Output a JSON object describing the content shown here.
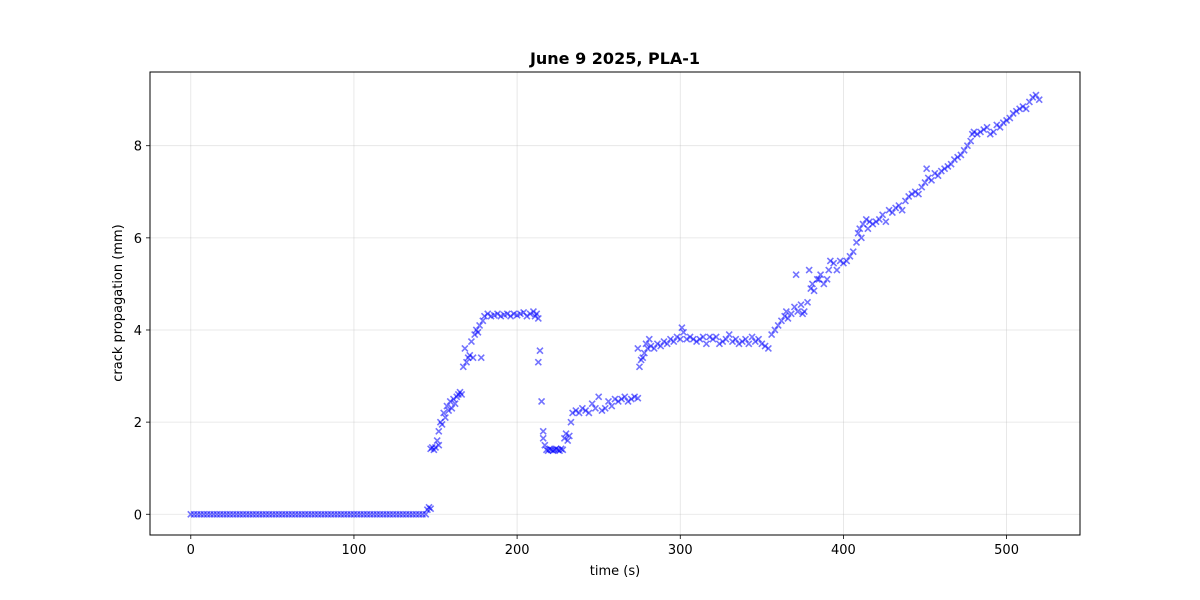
{
  "chart_data": {
    "type": "scatter",
    "title": "June 9 2025, PLA-1",
    "xlabel": "time (s)",
    "ylabel": "crack propagation (mm)",
    "xlim": [
      -25,
      545
    ],
    "ylim": [
      -0.45,
      9.6
    ],
    "xticks": [
      0,
      100,
      200,
      300,
      400,
      500
    ],
    "yticks": [
      0,
      2,
      4,
      6,
      8
    ],
    "grid": true,
    "marker": "x",
    "color": "#0000ff",
    "series": [
      {
        "name": "crack propagation",
        "points": [
          [
            0,
            0
          ],
          [
            2,
            0
          ],
          [
            4,
            0
          ],
          [
            6,
            0
          ],
          [
            8,
            0
          ],
          [
            10,
            0
          ],
          [
            12,
            0
          ],
          [
            14,
            0
          ],
          [
            16,
            0
          ],
          [
            18,
            0
          ],
          [
            20,
            0
          ],
          [
            22,
            0
          ],
          [
            24,
            0
          ],
          [
            26,
            0
          ],
          [
            28,
            0
          ],
          [
            30,
            0
          ],
          [
            32,
            0
          ],
          [
            34,
            0
          ],
          [
            36,
            0
          ],
          [
            38,
            0
          ],
          [
            40,
            0
          ],
          [
            42,
            0
          ],
          [
            44,
            0
          ],
          [
            46,
            0
          ],
          [
            48,
            0
          ],
          [
            50,
            0
          ],
          [
            52,
            0
          ],
          [
            54,
            0
          ],
          [
            56,
            0
          ],
          [
            58,
            0
          ],
          [
            60,
            0
          ],
          [
            62,
            0
          ],
          [
            64,
            0
          ],
          [
            66,
            0
          ],
          [
            68,
            0
          ],
          [
            70,
            0
          ],
          [
            72,
            0
          ],
          [
            74,
            0
          ],
          [
            76,
            0
          ],
          [
            78,
            0
          ],
          [
            80,
            0
          ],
          [
            82,
            0
          ],
          [
            84,
            0
          ],
          [
            86,
            0
          ],
          [
            88,
            0
          ],
          [
            90,
            0
          ],
          [
            92,
            0
          ],
          [
            94,
            0
          ],
          [
            96,
            0
          ],
          [
            98,
            0
          ],
          [
            100,
            0
          ],
          [
            102,
            0
          ],
          [
            104,
            0
          ],
          [
            106,
            0
          ],
          [
            108,
            0
          ],
          [
            110,
            0
          ],
          [
            112,
            0
          ],
          [
            114,
            0
          ],
          [
            116,
            0
          ],
          [
            118,
            0
          ],
          [
            120,
            0
          ],
          [
            122,
            0
          ],
          [
            124,
            0
          ],
          [
            126,
            0
          ],
          [
            128,
            0
          ],
          [
            130,
            0
          ],
          [
            132,
            0
          ],
          [
            134,
            0
          ],
          [
            136,
            0
          ],
          [
            138,
            0
          ],
          [
            140,
            0
          ],
          [
            142,
            0
          ],
          [
            144,
            0
          ],
          [
            145,
            0.1
          ],
          [
            146,
            0.15
          ],
          [
            147,
            0.12
          ],
          [
            147,
            1.42
          ],
          [
            148,
            1.45
          ],
          [
            149,
            1.4
          ],
          [
            150,
            1.45
          ],
          [
            151,
            1.6
          ],
          [
            152,
            1.5
          ],
          [
            152,
            1.8
          ],
          [
            153,
            2.0
          ],
          [
            154,
            1.95
          ],
          [
            155,
            2.2
          ],
          [
            156,
            2.1
          ],
          [
            157,
            2.35
          ],
          [
            158,
            2.25
          ],
          [
            159,
            2.45
          ],
          [
            160,
            2.3
          ],
          [
            161,
            2.5
          ],
          [
            162,
            2.4
          ],
          [
            163,
            2.55
          ],
          [
            164,
            2.6
          ],
          [
            165,
            2.65
          ],
          [
            166,
            2.6
          ],
          [
            167,
            3.2
          ],
          [
            168,
            3.6
          ],
          [
            169,
            3.3
          ],
          [
            170,
            3.4
          ],
          [
            171,
            3.45
          ],
          [
            172,
            3.75
          ],
          [
            173,
            3.4
          ],
          [
            174,
            3.9
          ],
          [
            175,
            4.0
          ],
          [
            176,
            3.95
          ],
          [
            177,
            4.1
          ],
          [
            178,
            3.4
          ],
          [
            179,
            4.2
          ],
          [
            180,
            4.3
          ],
          [
            182,
            4.35
          ],
          [
            184,
            4.3
          ],
          [
            186,
            4.32
          ],
          [
            188,
            4.35
          ],
          [
            190,
            4.3
          ],
          [
            192,
            4.33
          ],
          [
            194,
            4.35
          ],
          [
            196,
            4.3
          ],
          [
            198,
            4.35
          ],
          [
            200,
            4.32
          ],
          [
            202,
            4.35
          ],
          [
            204,
            4.38
          ],
          [
            206,
            4.3
          ],
          [
            208,
            4.35
          ],
          [
            210,
            4.4
          ],
          [
            211,
            4.3
          ],
          [
            212,
            4.35
          ],
          [
            213,
            4.25
          ],
          [
            213,
            3.3
          ],
          [
            214,
            3.55
          ],
          [
            215,
            2.45
          ],
          [
            216,
            1.8
          ],
          [
            216,
            1.65
          ],
          [
            217,
            1.5
          ],
          [
            218,
            1.4
          ],
          [
            219,
            1.38
          ],
          [
            220,
            1.42
          ],
          [
            221,
            1.4
          ],
          [
            222,
            1.38
          ],
          [
            223,
            1.4
          ],
          [
            224,
            1.42
          ],
          [
            225,
            1.4
          ],
          [
            226,
            1.38
          ],
          [
            227,
            1.42
          ],
          [
            228,
            1.4
          ],
          [
            229,
            1.65
          ],
          [
            230,
            1.75
          ],
          [
            231,
            1.6
          ],
          [
            232,
            1.7
          ],
          [
            233,
            2.0
          ],
          [
            234,
            2.2
          ],
          [
            236,
            2.25
          ],
          [
            238,
            2.2
          ],
          [
            240,
            2.3
          ],
          [
            242,
            2.25
          ],
          [
            244,
            2.2
          ],
          [
            246,
            2.4
          ],
          [
            248,
            2.3
          ],
          [
            250,
            2.55
          ],
          [
            252,
            2.25
          ],
          [
            254,
            2.3
          ],
          [
            256,
            2.45
          ],
          [
            258,
            2.35
          ],
          [
            260,
            2.5
          ],
          [
            262,
            2.45
          ],
          [
            264,
            2.5
          ],
          [
            266,
            2.55
          ],
          [
            268,
            2.45
          ],
          [
            270,
            2.5
          ],
          [
            272,
            2.55
          ],
          [
            274,
            2.52
          ],
          [
            274,
            3.6
          ],
          [
            275,
            3.2
          ],
          [
            276,
            3.35
          ],
          [
            277,
            3.4
          ],
          [
            278,
            3.5
          ],
          [
            279,
            3.7
          ],
          [
            280,
            3.6
          ],
          [
            281,
            3.8
          ],
          [
            282,
            3.65
          ],
          [
            284,
            3.6
          ],
          [
            286,
            3.7
          ],
          [
            288,
            3.65
          ],
          [
            290,
            3.75
          ],
          [
            292,
            3.7
          ],
          [
            294,
            3.8
          ],
          [
            296,
            3.75
          ],
          [
            298,
            3.85
          ],
          [
            300,
            3.8
          ],
          [
            301,
            4.05
          ],
          [
            302,
            3.95
          ],
          [
            304,
            3.8
          ],
          [
            306,
            3.85
          ],
          [
            308,
            3.8
          ],
          [
            310,
            3.75
          ],
          [
            312,
            3.8
          ],
          [
            314,
            3.85
          ],
          [
            316,
            3.7
          ],
          [
            318,
            3.85
          ],
          [
            320,
            3.8
          ],
          [
            322,
            3.85
          ],
          [
            324,
            3.7
          ],
          [
            326,
            3.75
          ],
          [
            328,
            3.8
          ],
          [
            330,
            3.9
          ],
          [
            332,
            3.75
          ],
          [
            334,
            3.8
          ],
          [
            336,
            3.7
          ],
          [
            338,
            3.75
          ],
          [
            340,
            3.8
          ],
          [
            342,
            3.7
          ],
          [
            344,
            3.85
          ],
          [
            346,
            3.75
          ],
          [
            348,
            3.8
          ],
          [
            350,
            3.7
          ],
          [
            352,
            3.65
          ],
          [
            354,
            3.6
          ],
          [
            356,
            3.9
          ],
          [
            358,
            4.0
          ],
          [
            360,
            4.1
          ],
          [
            362,
            4.2
          ],
          [
            364,
            4.3
          ],
          [
            365,
            4.4
          ],
          [
            366,
            4.25
          ],
          [
            368,
            4.35
          ],
          [
            370,
            4.5
          ],
          [
            371,
            5.2
          ],
          [
            372,
            4.4
          ],
          [
            374,
            4.55
          ],
          [
            375,
            4.35
          ],
          [
            376,
            4.4
          ],
          [
            378,
            4.6
          ],
          [
            379,
            5.3
          ],
          [
            380,
            4.9
          ],
          [
            381,
            5.0
          ],
          [
            382,
            4.85
          ],
          [
            384,
            5.1
          ],
          [
            385,
            5.1
          ],
          [
            386,
            5.2
          ],
          [
            388,
            5.0
          ],
          [
            390,
            5.1
          ],
          [
            391,
            5.3
          ],
          [
            392,
            5.5
          ],
          [
            394,
            5.45
          ],
          [
            396,
            5.3
          ],
          [
            398,
            5.5
          ],
          [
            400,
            5.45
          ],
          [
            402,
            5.5
          ],
          [
            404,
            5.6
          ],
          [
            406,
            5.7
          ],
          [
            408,
            5.9
          ],
          [
            409,
            6.1
          ],
          [
            410,
            6.2
          ],
          [
            411,
            6.0
          ],
          [
            412,
            6.3
          ],
          [
            414,
            6.4
          ],
          [
            415,
            6.2
          ],
          [
            416,
            6.35
          ],
          [
            418,
            6.3
          ],
          [
            420,
            6.35
          ],
          [
            422,
            6.4
          ],
          [
            424,
            6.5
          ],
          [
            426,
            6.35
          ],
          [
            428,
            6.6
          ],
          [
            430,
            6.55
          ],
          [
            432,
            6.65
          ],
          [
            434,
            6.7
          ],
          [
            436,
            6.6
          ],
          [
            438,
            6.8
          ],
          [
            440,
            6.9
          ],
          [
            442,
            6.95
          ],
          [
            444,
            7.0
          ],
          [
            446,
            6.95
          ],
          [
            448,
            7.1
          ],
          [
            450,
            7.2
          ],
          [
            451,
            7.5
          ],
          [
            452,
            7.3
          ],
          [
            454,
            7.25
          ],
          [
            456,
            7.4
          ],
          [
            458,
            7.35
          ],
          [
            460,
            7.45
          ],
          [
            462,
            7.5
          ],
          [
            464,
            7.55
          ],
          [
            466,
            7.6
          ],
          [
            468,
            7.7
          ],
          [
            470,
            7.75
          ],
          [
            472,
            7.8
          ],
          [
            474,
            7.9
          ],
          [
            476,
            8.0
          ],
          [
            478,
            8.1
          ],
          [
            479,
            8.25
          ],
          [
            480,
            8.3
          ],
          [
            482,
            8.25
          ],
          [
            484,
            8.3
          ],
          [
            486,
            8.35
          ],
          [
            488,
            8.4
          ],
          [
            490,
            8.25
          ],
          [
            492,
            8.3
          ],
          [
            494,
            8.45
          ],
          [
            496,
            8.4
          ],
          [
            498,
            8.5
          ],
          [
            500,
            8.55
          ],
          [
            502,
            8.6
          ],
          [
            504,
            8.7
          ],
          [
            506,
            8.75
          ],
          [
            508,
            8.8
          ],
          [
            510,
            8.85
          ],
          [
            512,
            8.8
          ],
          [
            514,
            8.95
          ],
          [
            516,
            9.05
          ],
          [
            518,
            9.1
          ],
          [
            520,
            9.0
          ]
        ]
      }
    ]
  }
}
